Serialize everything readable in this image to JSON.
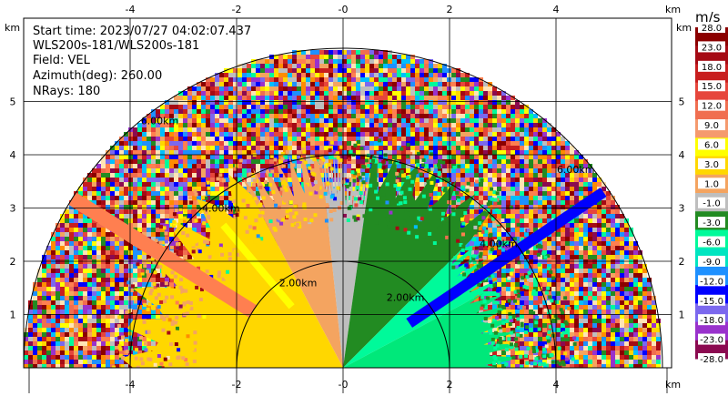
{
  "chart_data": {
    "type": "heatmap",
    "projection": "ppi-half-disk",
    "info": {
      "start_time": "Start time: 2023/07/27 04:02:07.437",
      "instrument": "WLS200s-181/WLS200s-181",
      "field": "Field: VEL",
      "azimuth": "Azimuth(deg): 260.00",
      "nrays": "NRays: 180"
    },
    "x_unit": "km",
    "y_unit": "km",
    "xlim": [
      -6.3,
      6.15
    ],
    "ylim": [
      0,
      6.0
    ],
    "x_ticks": [
      -4,
      -2,
      0,
      2,
      4
    ],
    "x_tick_labels": [
      "-4",
      "-2",
      "-0",
      "2",
      "4"
    ],
    "y_ticks": [
      1,
      2,
      3,
      4,
      5
    ],
    "y_tick_labels": [
      "1",
      "2",
      "3",
      "4",
      "5"
    ],
    "max_range_km": 6.0,
    "range_rings": [
      {
        "radius": 2,
        "label": "2.00km",
        "label_left_x": -1.2,
        "label_right_x": 1.5
      },
      {
        "radius": 4,
        "label": "4.00km",
        "label_left_x": -2.65,
        "label_right_x": 3.25
      },
      {
        "radius": 6,
        "label": "6.00km",
        "label_left_x": -3.8,
        "label_right_x": 4.7
      }
    ],
    "colorbar": {
      "unit": "m/s",
      "tick_labels": [
        "28.0",
        "23.0",
        "18.0",
        "15.0",
        "12.0",
        "9.0",
        "6.0",
        "3.0",
        "1.0",
        "-1.0",
        "-3.0",
        "-6.0",
        "-9.0",
        "-12.0",
        "-15.0",
        "-18.0",
        "-23.0",
        "-28.0"
      ],
      "colors": [
        "#8b0000",
        "#a50a14",
        "#c81e1e",
        "#e6463c",
        "#f06e50",
        "#f59a6e",
        "#ffff00",
        "#ffd700",
        "#f4a460",
        "#bebebe",
        "#228b22",
        "#00fa9a",
        "#00e5c0",
        "#1e90ff",
        "#0000ff",
        "#7b68ee",
        "#9932cc",
        "#8b0a50"
      ]
    },
    "noise_palette": [
      "#8b0000",
      "#a50a14",
      "#c81e1e",
      "#e6463c",
      "#f06e50",
      "#ff7f50",
      "#ffd700",
      "#ffff00",
      "#f4a460",
      "#bebebe",
      "#228b22",
      "#00fa9a",
      "#00bfff",
      "#1e90ff",
      "#0000ff",
      "#7b68ee",
      "#9932cc",
      "#8b0a50",
      "#ff8c00",
      "#ffe4b5"
    ],
    "sectors": [
      {
        "az0": 0,
        "az1": 8,
        "r0": 0,
        "r1": 3.6,
        "color": "#bebebe"
      },
      {
        "az0": 8,
        "az1": 45,
        "r0": 0,
        "r1": 4.0,
        "color": "#228b22"
      },
      {
        "az0": 45,
        "az1": 62,
        "r0": 0,
        "r1": 3.3,
        "color": "#00fa9a"
      },
      {
        "az0": 62,
        "az1": 90,
        "r0": 0,
        "r1": 3.2,
        "color": "#00e87a"
      },
      {
        "az0": 0,
        "az1": -6,
        "r0": 0,
        "r1": 3.9,
        "color": "#bebebe"
      },
      {
        "az0": -6,
        "az1": -28,
        "r0": 0,
        "r1": 4.0,
        "color": "#f4a460"
      },
      {
        "az0": -28,
        "az1": -90,
        "r0": 0,
        "r1": 4.1,
        "color": "#ffd700"
      }
    ],
    "beams": [
      {
        "az": 56,
        "r0": 1.5,
        "r1": 5.9,
        "width": 3,
        "color": "#0000ff"
      },
      {
        "az": -58,
        "r0": 2.0,
        "r1": 6.0,
        "width": 4,
        "color": "#ff7f50"
      },
      {
        "az": -40,
        "r0": 1.5,
        "r1": 3.5,
        "width": 2,
        "color": "#ffff00"
      }
    ]
  }
}
